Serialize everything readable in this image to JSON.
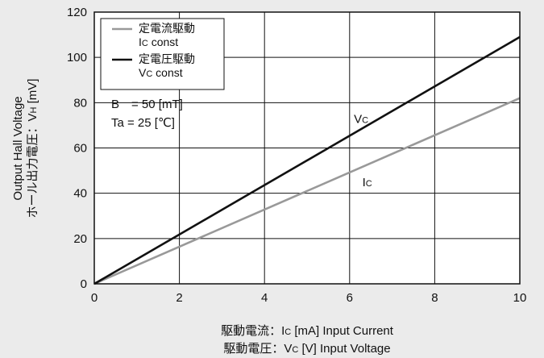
{
  "chart_data": {
    "type": "line",
    "xlim": [
      0,
      10
    ],
    "ylim": [
      0,
      120
    ],
    "x_ticks": [
      0,
      2,
      4,
      6,
      8,
      10
    ],
    "y_ticks": [
      0,
      20,
      40,
      60,
      80,
      100,
      120
    ],
    "grid": true,
    "legend_placement": "top-left",
    "colors": {
      "background": "#ebebeb",
      "plot_bg": "#ffffff",
      "grid": "#111111"
    },
    "series": [
      {
        "name": "定電流駆動 Ic const",
        "color": "#999999",
        "x": [
          0,
          10
        ],
        "y": [
          0,
          82
        ]
      },
      {
        "name": "定電圧駆動 Vc const",
        "color": "#111111",
        "x": [
          0,
          10
        ],
        "y": [
          0,
          109
        ]
      }
    ],
    "legend": [
      {
        "line1": "定電流駆動",
        "main": "I",
        "sub": "C",
        "rest": " const",
        "color": "#999999"
      },
      {
        "line1": "定電圧駆動",
        "main": "V",
        "sub": "C",
        "rest": " const",
        "color": "#111111"
      }
    ],
    "conditions": [
      "B　= 50 [mT]",
      "Ta = 25 [℃]"
    ],
    "series_labels": [
      {
        "main": "V",
        "sub": "C",
        "x": 6.1,
        "y": 71
      },
      {
        "main": "I",
        "sub": "C",
        "x": 6.3,
        "y": 43
      }
    ],
    "ylabel": {
      "line1": "Output Hall Voltage",
      "line2_pre": "ホール出力電圧：V",
      "line2_sub": "H",
      "line2_post": " [mV]"
    },
    "xlabel": {
      "line1_pre": "駆動電流：I",
      "line1_sub": "C",
      "line1_post": " [mA]  Input Current",
      "line2_pre": "駆動電圧：V",
      "line2_sub": "C",
      "line2_post": " [V]  Input Voltage"
    }
  }
}
